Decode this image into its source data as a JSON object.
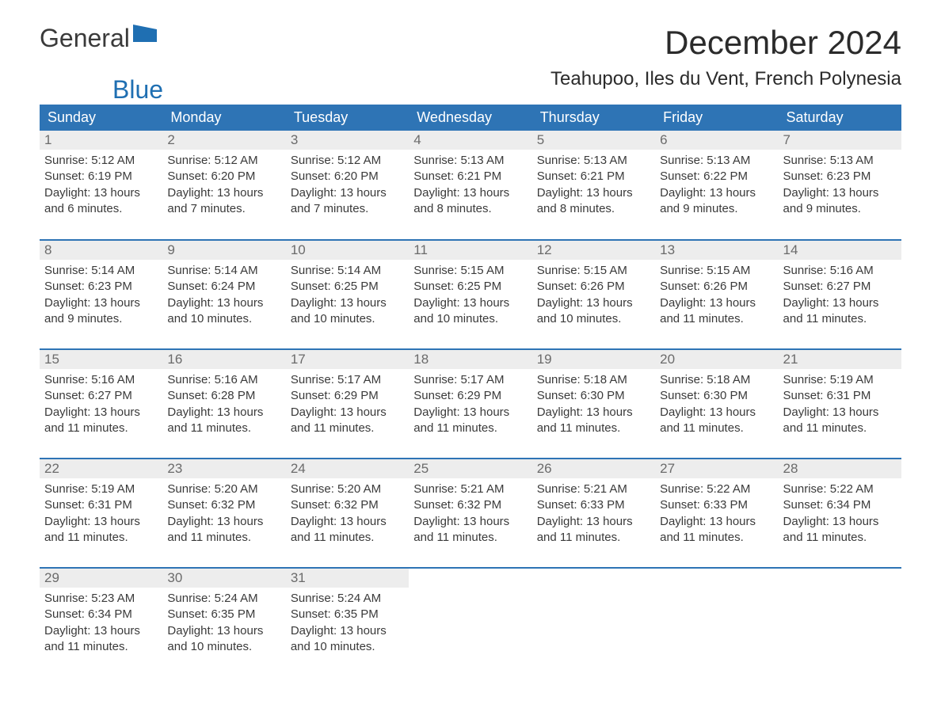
{
  "logo": {
    "text1": "General",
    "text2": "Blue",
    "flag_color": "#1f6fb2"
  },
  "title": "December 2024",
  "subtitle": "Teahupoo, Iles du Vent, French Polynesia",
  "colors": {
    "header_bg": "#2e74b5",
    "header_fg": "#ffffff",
    "daynum_bg": "#ededed",
    "daynum_fg": "#6b6b6b",
    "text": "#3a3a3a",
    "accent": "#1f6fb2"
  },
  "weekdays": [
    "Sunday",
    "Monday",
    "Tuesday",
    "Wednesday",
    "Thursday",
    "Friday",
    "Saturday"
  ],
  "weeks": [
    [
      {
        "n": "1",
        "sr": "Sunrise: 5:12 AM",
        "ss": "Sunset: 6:19 PM",
        "d1": "Daylight: 13 hours",
        "d2": "and 6 minutes."
      },
      {
        "n": "2",
        "sr": "Sunrise: 5:12 AM",
        "ss": "Sunset: 6:20 PM",
        "d1": "Daylight: 13 hours",
        "d2": "and 7 minutes."
      },
      {
        "n": "3",
        "sr": "Sunrise: 5:12 AM",
        "ss": "Sunset: 6:20 PM",
        "d1": "Daylight: 13 hours",
        "d2": "and 7 minutes."
      },
      {
        "n": "4",
        "sr": "Sunrise: 5:13 AM",
        "ss": "Sunset: 6:21 PM",
        "d1": "Daylight: 13 hours",
        "d2": "and 8 minutes."
      },
      {
        "n": "5",
        "sr": "Sunrise: 5:13 AM",
        "ss": "Sunset: 6:21 PM",
        "d1": "Daylight: 13 hours",
        "d2": "and 8 minutes."
      },
      {
        "n": "6",
        "sr": "Sunrise: 5:13 AM",
        "ss": "Sunset: 6:22 PM",
        "d1": "Daylight: 13 hours",
        "d2": "and 9 minutes."
      },
      {
        "n": "7",
        "sr": "Sunrise: 5:13 AM",
        "ss": "Sunset: 6:23 PM",
        "d1": "Daylight: 13 hours",
        "d2": "and 9 minutes."
      }
    ],
    [
      {
        "n": "8",
        "sr": "Sunrise: 5:14 AM",
        "ss": "Sunset: 6:23 PM",
        "d1": "Daylight: 13 hours",
        "d2": "and 9 minutes."
      },
      {
        "n": "9",
        "sr": "Sunrise: 5:14 AM",
        "ss": "Sunset: 6:24 PM",
        "d1": "Daylight: 13 hours",
        "d2": "and 10 minutes."
      },
      {
        "n": "10",
        "sr": "Sunrise: 5:14 AM",
        "ss": "Sunset: 6:25 PM",
        "d1": "Daylight: 13 hours",
        "d2": "and 10 minutes."
      },
      {
        "n": "11",
        "sr": "Sunrise: 5:15 AM",
        "ss": "Sunset: 6:25 PM",
        "d1": "Daylight: 13 hours",
        "d2": "and 10 minutes."
      },
      {
        "n": "12",
        "sr": "Sunrise: 5:15 AM",
        "ss": "Sunset: 6:26 PM",
        "d1": "Daylight: 13 hours",
        "d2": "and 10 minutes."
      },
      {
        "n": "13",
        "sr": "Sunrise: 5:15 AM",
        "ss": "Sunset: 6:26 PM",
        "d1": "Daylight: 13 hours",
        "d2": "and 11 minutes."
      },
      {
        "n": "14",
        "sr": "Sunrise: 5:16 AM",
        "ss": "Sunset: 6:27 PM",
        "d1": "Daylight: 13 hours",
        "d2": "and 11 minutes."
      }
    ],
    [
      {
        "n": "15",
        "sr": "Sunrise: 5:16 AM",
        "ss": "Sunset: 6:27 PM",
        "d1": "Daylight: 13 hours",
        "d2": "and 11 minutes."
      },
      {
        "n": "16",
        "sr": "Sunrise: 5:16 AM",
        "ss": "Sunset: 6:28 PM",
        "d1": "Daylight: 13 hours",
        "d2": "and 11 minutes."
      },
      {
        "n": "17",
        "sr": "Sunrise: 5:17 AM",
        "ss": "Sunset: 6:29 PM",
        "d1": "Daylight: 13 hours",
        "d2": "and 11 minutes."
      },
      {
        "n": "18",
        "sr": "Sunrise: 5:17 AM",
        "ss": "Sunset: 6:29 PM",
        "d1": "Daylight: 13 hours",
        "d2": "and 11 minutes."
      },
      {
        "n": "19",
        "sr": "Sunrise: 5:18 AM",
        "ss": "Sunset: 6:30 PM",
        "d1": "Daylight: 13 hours",
        "d2": "and 11 minutes."
      },
      {
        "n": "20",
        "sr": "Sunrise: 5:18 AM",
        "ss": "Sunset: 6:30 PM",
        "d1": "Daylight: 13 hours",
        "d2": "and 11 minutes."
      },
      {
        "n": "21",
        "sr": "Sunrise: 5:19 AM",
        "ss": "Sunset: 6:31 PM",
        "d1": "Daylight: 13 hours",
        "d2": "and 11 minutes."
      }
    ],
    [
      {
        "n": "22",
        "sr": "Sunrise: 5:19 AM",
        "ss": "Sunset: 6:31 PM",
        "d1": "Daylight: 13 hours",
        "d2": "and 11 minutes."
      },
      {
        "n": "23",
        "sr": "Sunrise: 5:20 AM",
        "ss": "Sunset: 6:32 PM",
        "d1": "Daylight: 13 hours",
        "d2": "and 11 minutes."
      },
      {
        "n": "24",
        "sr": "Sunrise: 5:20 AM",
        "ss": "Sunset: 6:32 PM",
        "d1": "Daylight: 13 hours",
        "d2": "and 11 minutes."
      },
      {
        "n": "25",
        "sr": "Sunrise: 5:21 AM",
        "ss": "Sunset: 6:32 PM",
        "d1": "Daylight: 13 hours",
        "d2": "and 11 minutes."
      },
      {
        "n": "26",
        "sr": "Sunrise: 5:21 AM",
        "ss": "Sunset: 6:33 PM",
        "d1": "Daylight: 13 hours",
        "d2": "and 11 minutes."
      },
      {
        "n": "27",
        "sr": "Sunrise: 5:22 AM",
        "ss": "Sunset: 6:33 PM",
        "d1": "Daylight: 13 hours",
        "d2": "and 11 minutes."
      },
      {
        "n": "28",
        "sr": "Sunrise: 5:22 AM",
        "ss": "Sunset: 6:34 PM",
        "d1": "Daylight: 13 hours",
        "d2": "and 11 minutes."
      }
    ],
    [
      {
        "n": "29",
        "sr": "Sunrise: 5:23 AM",
        "ss": "Sunset: 6:34 PM",
        "d1": "Daylight: 13 hours",
        "d2": "and 11 minutes."
      },
      {
        "n": "30",
        "sr": "Sunrise: 5:24 AM",
        "ss": "Sunset: 6:35 PM",
        "d1": "Daylight: 13 hours",
        "d2": "and 10 minutes."
      },
      {
        "n": "31",
        "sr": "Sunrise: 5:24 AM",
        "ss": "Sunset: 6:35 PM",
        "d1": "Daylight: 13 hours",
        "d2": "and 10 minutes."
      },
      {
        "n": "",
        "sr": "",
        "ss": "",
        "d1": "",
        "d2": ""
      },
      {
        "n": "",
        "sr": "",
        "ss": "",
        "d1": "",
        "d2": ""
      },
      {
        "n": "",
        "sr": "",
        "ss": "",
        "d1": "",
        "d2": ""
      },
      {
        "n": "",
        "sr": "",
        "ss": "",
        "d1": "",
        "d2": ""
      }
    ]
  ]
}
